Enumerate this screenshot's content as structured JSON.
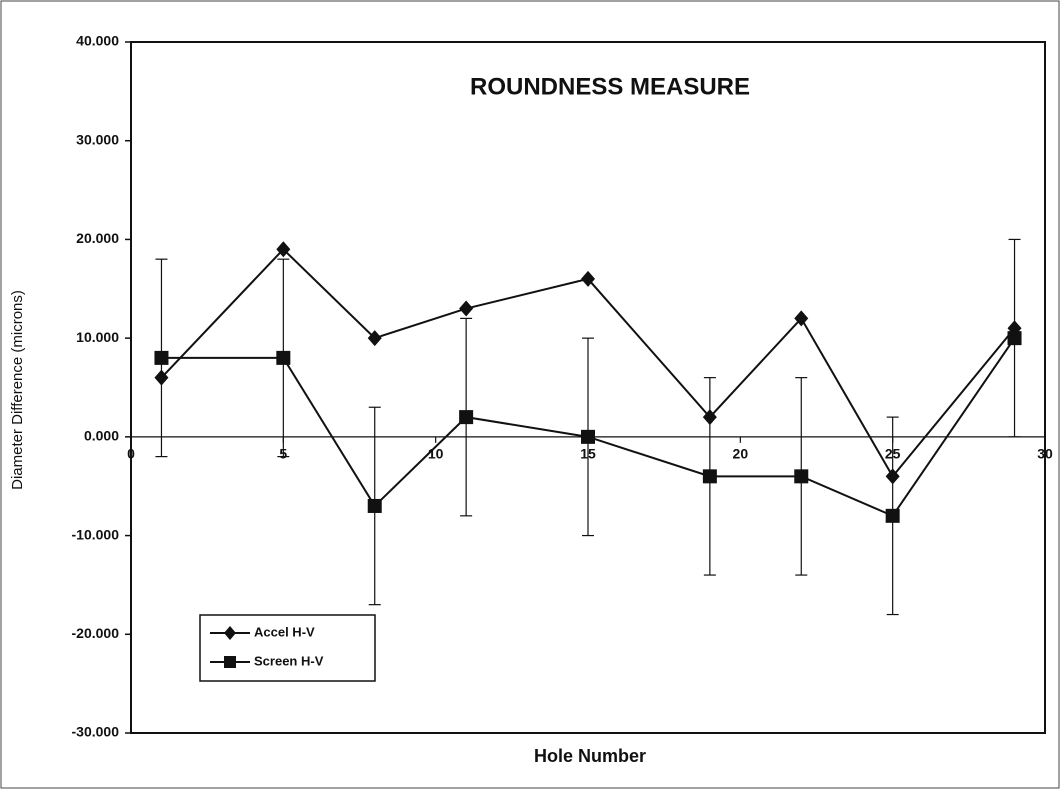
{
  "chart_data": {
    "type": "line",
    "title": "ROUNDNESS MEASURE",
    "x_label": "Hole Number",
    "y_label": "Diameter Difference (microns)",
    "x": [
      1,
      5,
      8,
      11,
      15,
      19,
      22,
      25,
      29
    ],
    "series": [
      {
        "name": "Accel H-V",
        "color": "#111111",
        "marker": "diamond",
        "values": [
          6,
          19,
          10,
          13,
          16,
          2,
          12,
          -4,
          11
        ]
      },
      {
        "name": "Screen H-V",
        "color": "#111111",
        "marker": "square",
        "values": [
          8,
          8,
          -7,
          2,
          0,
          -4,
          -4,
          -8,
          10
        ],
        "errors": [
          10,
          10,
          10,
          10,
          10,
          10,
          10,
          10,
          10
        ]
      }
    ],
    "xlim": [
      0,
      30
    ],
    "xticks": [
      0,
      5,
      10,
      15,
      20,
      25,
      30
    ],
    "ylim": [
      -30,
      40
    ],
    "yticks": [
      {
        "value": -30,
        "label": "-30.000"
      },
      {
        "value": -20,
        "label": "-20.000"
      },
      {
        "value": -10,
        "label": "-10.000"
      },
      {
        "value": 0,
        "label": "0.000"
      },
      {
        "value": 10,
        "label": "10.000"
      },
      {
        "value": 20,
        "label": "20.000"
      },
      {
        "value": 30,
        "label": "30.000"
      },
      {
        "value": 40,
        "label": "40.000"
      }
    ],
    "grid": false,
    "legend": "lower left"
  }
}
